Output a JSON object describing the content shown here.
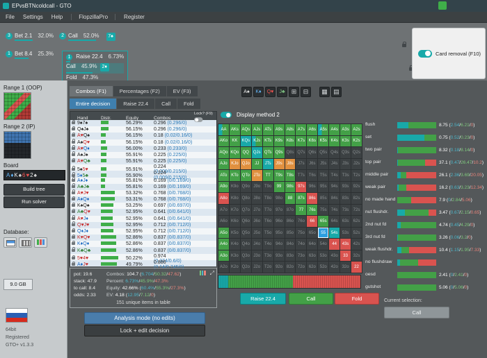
{
  "window": {
    "title": "EPvsBTNcoldcall - GTO"
  },
  "menu": {
    "items": [
      "File",
      "Settings",
      "Help"
    ],
    "brand": "FlopzillaPro",
    "register": "Register"
  },
  "tree": {
    "row1": {
      "badge_a": "3",
      "action_a": "Bet 2.1",
      "pct_a": "32.0%",
      "badge_b": "2",
      "action_b": "Call",
      "pct_b": "52.0%",
      "chip": "7♠"
    },
    "row2": {
      "badge": "1",
      "action": "Bet 8.4",
      "pct": "25.3%",
      "box": {
        "badge": "1",
        "raise": "Raise 22.4",
        "raise_pct": "6.73%",
        "call": "Call",
        "call_pct": "45.9%",
        "chip": "2♦",
        "fold": "Fold",
        "fold_pct": "47.3%"
      }
    }
  },
  "card_removal": {
    "label": "Card removal (F10)",
    "enabled": true
  },
  "sidebar": {
    "range1_label": "Range 1 (OOP)",
    "range2_label": "Range 2 (IP)",
    "board_label": "Board",
    "board_cards": [
      {
        "t": "A♦",
        "s": "d"
      },
      {
        "t": "K♠",
        "s": "s"
      },
      {
        "t": "6♥",
        "s": "h"
      },
      {
        "t": "2♠",
        "s": "s"
      }
    ],
    "build_tree": "Build tree",
    "run_solver": "Run solver",
    "database_label": "Database:",
    "storage": "9.0 GB",
    "version_lines": [
      "64bit",
      "Registered",
      "GTO+ v1.3.3"
    ]
  },
  "tabs_primary": {
    "items": [
      "Combos (F1)",
      "Percentages (F2)",
      "EV (F3)"
    ],
    "active": 0
  },
  "tabs_decision": {
    "items": [
      "Entire decision",
      "Raise 22.4",
      "Call",
      "Fold"
    ],
    "active": 0
  },
  "card_toolbar": {
    "cards": [
      {
        "label": "A♠",
        "color": "#e8e8e8"
      },
      {
        "label": "K♦",
        "color": "#64b5f6"
      },
      {
        "label": "Q♥",
        "color": "#ef5350"
      },
      {
        "label": "J♣",
        "color": "#81c784"
      }
    ],
    "grid_buttons": [
      "⊞",
      "⊟",
      "▦",
      "▤"
    ]
  },
  "display_method": {
    "label": "Display method 2",
    "enabled": true
  },
  "hands_table": {
    "columns": [
      "Hand",
      "Distr.",
      "Equity",
      "Combos"
    ],
    "lock_header": "Lock? (F9)",
    "rows": [
      {
        "h": "9♠7♠",
        "e": "56.29%",
        "c": "0.296",
        "p": "(0.296/0)",
        "d": 30
      },
      {
        "h": "Q♠J♠",
        "e": "56.15%",
        "c": "0.296",
        "p": "(0.296/0)",
        "d": 30
      },
      {
        "h": "A♥Q♠",
        "e": "56.15%",
        "c": "0.18",
        "p": "(0.02/0.16/0)",
        "d": 20
      },
      {
        "h": "A♠Q♥",
        "e": "56.15%",
        "c": "0.18",
        "p": "(0.02/0.16/0)",
        "d": 20
      },
      {
        "h": "A♥Q♦",
        "e": "56.00%",
        "c": "0.233",
        "p": "(0.233/0)",
        "d": 24
      },
      {
        "h": "A♠J♠",
        "e": "55.91%",
        "c": "0.225",
        "p": "(0.225/0)",
        "d": 23
      },
      {
        "h": "A♥Q♣",
        "e": "55.91%",
        "c": "0.225",
        "p": "(0.225/0)",
        "d": 23
      },
      {
        "h": "5♠5♥",
        "e": "55.91%",
        "c": "0.224",
        "p": "(0.009/0.215/0)",
        "d": 23
      },
      {
        "h": "5♦5♣",
        "e": "55.90%",
        "c": "0.224",
        "p": "(0.009/0.215/0)",
        "d": 23
      },
      {
        "h": "A♦J♦",
        "e": "55.81%",
        "c": "0.169",
        "p": "(0/0.169/0)",
        "d": 18
      },
      {
        "h": "A♣J♣",
        "e": "55.81%",
        "c": "0.169",
        "p": "(0/0.169/0)",
        "d": 18
      },
      {
        "h": "A♥J♥",
        "e": "53.32%",
        "c": "0.768",
        "p": "(0/0.768/0)",
        "d": 55
      },
      {
        "h": "A♦Q♦",
        "e": "53.31%",
        "c": "0.768",
        "p": "(0/0.768/0)",
        "d": 55
      },
      {
        "h": "K♠Q♠",
        "e": "53.25%",
        "c": "0.697",
        "p": "(0/0.697/0)",
        "d": 50
      },
      {
        "h": "A♣Q♥",
        "e": "52.95%",
        "c": "0.641",
        "p": "(0/0.641/0)",
        "d": 46
      },
      {
        "h": "A♥J♦",
        "e": "52.95%",
        "c": "0.641",
        "p": "(0/0.641/0)",
        "d": 46
      },
      {
        "h": "Q♥J♥",
        "e": "52.95%",
        "c": "0.712",
        "p": "(0/0.712/0)",
        "d": 51
      },
      {
        "h": "Q♦J♦",
        "e": "52.95%",
        "c": "0.712",
        "p": "(0/0.712/0)",
        "d": 51
      },
      {
        "h": "K♥Q♥",
        "e": "52.86%",
        "c": "0.837",
        "p": "(0/0.837/0)",
        "d": 60
      },
      {
        "h": "K♦Q♦",
        "e": "52.86%",
        "c": "0.837",
        "p": "(0/0.837/0)",
        "d": 60
      },
      {
        "h": "K♣Q♣",
        "e": "52.86%",
        "c": "0.837",
        "p": "(0/0.837/0)",
        "d": 60
      },
      {
        "h": "5♥4♥",
        "e": "50.22%",
        "c": "0.974",
        "p": "(0.374/0.6/0)",
        "d": 70
      },
      {
        "h": "A♦J♥",
        "e": "49.79%",
        "c": "0.886",
        "p": "(0.14/0.745/0)",
        "d": 63
      }
    ]
  },
  "summary": {
    "pot": "pot: 19.6",
    "stack": "stack: 47.9",
    "to_call": "to call: 8.4",
    "odds": "odds: 2.33",
    "combos": {
      "label": "Combos:",
      "total": "104.7",
      "parts": [
        "6.704",
        "50.32",
        "47.62"
      ]
    },
    "percent": {
      "label": "Percent:",
      "total": "",
      "parts": [
        "6.73%",
        "45.9%",
        "47.3%"
      ]
    },
    "equity": {
      "label": "Equity:",
      "total": "42.66%",
      "parts": [
        "60.4%",
        "55.3%",
        "27.3%"
      ]
    },
    "ev": {
      "label": "EV:",
      "total": "4.18",
      "parts": [
        "12.95",
        "7.12",
        "0"
      ]
    },
    "note": "151 unique items in table"
  },
  "mode_buttons": {
    "analysis": "Analysis mode (no edits)",
    "lock_edit": "Lock + edit decision"
  },
  "matrix": {
    "rows": [
      [
        "AA|tg",
        "AKs|g",
        "AQs|g",
        "AJs|g",
        "ATs|g",
        "A9s|g",
        "A8s|g",
        "A7s|g",
        "A6s|g",
        "A5s|tg",
        "A4s|g",
        "A3s|g",
        "A2s|g"
      ],
      [
        "AKo|g",
        "KK|g",
        "KQs|t",
        "KJs|tg",
        "KTs|g",
        "K9s|g",
        "K8s|g",
        "K7s|g",
        "K6s|g",
        "K5s|g",
        "K4s|g",
        "K3s|g",
        "K2s|g"
      ],
      [
        "AQo|g",
        "KQo|g",
        "QQ|g",
        "QJs|t",
        "QTs|g",
        "Q9s|g",
        "Q8s|d",
        "Q7s|d",
        "Q6s|d",
        "Q5s|d",
        "Q4s|d",
        "Q3s|d",
        "Q2s|d"
      ],
      [
        "AJo|g",
        "KJo|o",
        "QJo|o",
        "JJ|g",
        "JTs|t",
        "J9s|o",
        "J8s|o",
        "J7s|d",
        "J6s|d",
        "J5s|d",
        "J4s|d",
        "J3s|d",
        "J2s|d"
      ],
      [
        "ATo|g",
        "KTo|g",
        "QTo|g",
        "JTo|o",
        "TT|g",
        "T9s|g",
        "T8s|g",
        "T7s|d",
        "T6s|d",
        "T5s|d",
        "T4s|d",
        "T3s|d",
        "T2s|d"
      ],
      [
        "A9o|g",
        "K9o|d",
        "Q9o|d",
        "J9o|d",
        "T9o|d",
        "99|g",
        "98s|g",
        "97s|r",
        "96s|d",
        "95s|d",
        "94s|d",
        "93s|d",
        "92s|d"
      ],
      [
        "A8o|r",
        "K8o|d",
        "Q8o|d",
        "J8o|d",
        "T8o|d",
        "98o|d",
        "88|g",
        "87s|g",
        "86s|r",
        "85s|d",
        "84s|d",
        "83s|d",
        "82s|d"
      ],
      [
        "A7o|d",
        "K7o|d",
        "Q7o|d",
        "J7o|d",
        "T7o|d",
        "97o|d",
        "87o|d",
        "77|g",
        "76s|g",
        "75s|d",
        "74s|d",
        "73s|d",
        "72s|d"
      ],
      [
        "A6o|d",
        "K6o|d",
        "Q6o|d",
        "J6o|d",
        "T6o|d",
        "96o|d",
        "86o|d",
        "76o|d",
        "66|r",
        "65s|g",
        "64s|d",
        "63s|d",
        "62s|d"
      ],
      [
        "A5o|g",
        "K5o|d",
        "Q5o|d",
        "J5o|d",
        "T5o|d",
        "95o|d",
        "85o|d",
        "75o|d",
        "65o|d",
        "55|b",
        "54s|t",
        "53s|d",
        "52s|d"
      ],
      [
        "A4o|g",
        "K4o|d",
        "Q4o|d",
        "J4o|d",
        "T4o|d",
        "94o|d",
        "84o|d",
        "74o|d",
        "64o|d",
        "54o|d",
        "44|r",
        "43s|r",
        "42s|d"
      ],
      [
        "A3o|g",
        "K3o|d",
        "Q3o|d",
        "J3o|d",
        "T3o|d",
        "93o|d",
        "83o|d",
        "73o|d",
        "63o|d",
        "53o|d",
        "43o|d",
        "33|r",
        "32s|d"
      ],
      [
        "A2o|d",
        "K2o|d",
        "Q2o|d",
        "J2o|d",
        "T2o|d",
        "92o|d",
        "82o|d",
        "72o|d",
        "62o|d",
        "52o|d",
        "42o|d",
        "32o|d",
        "22|r"
      ]
    ]
  },
  "strip": {
    "segments": [
      {
        "color": "t",
        "pct": 6.7
      },
      {
        "color": "g",
        "pct": 45.9
      },
      {
        "color": "r",
        "pct": 47.4
      }
    ]
  },
  "action_buttons": {
    "raise": "Raise 22.4",
    "call": "Call",
    "fold": "Fold",
    "current_label": "Current selection:",
    "current": "Call"
  },
  "categories": {
    "rows": [
      {
        "label": "flush",
        "value": "8.75",
        "parts": [
          "2.54",
          "6.21",
          "0"
        ],
        "bar": [
          29,
          71,
          0
        ]
      },
      {
        "label": "set",
        "value": "0.75",
        "parts": [
          "0.52",
          "0.23",
          "0"
        ],
        "bar": [
          69,
          31,
          0
        ]
      },
      {
        "label": "two pair",
        "value": "8.32",
        "parts": [
          "0.18",
          "8.14",
          "0"
        ],
        "bar": [
          2,
          98,
          0
        ]
      },
      {
        "label": "top pair",
        "value": "37.1",
        "parts": [
          "0.47",
          "26.47",
          "10.2"
        ],
        "bar": [
          1,
          71,
          28
        ]
      },
      {
        "label": "middle pair",
        "value": "26.1",
        "parts": [
          "2.36",
          "3.69",
          "20.05"
        ],
        "bar": [
          9,
          14,
          77
        ]
      },
      {
        "label": "weak pair",
        "value": "16.2",
        "parts": [
          "0.63",
          "3.23",
          "12.34"
        ],
        "bar": [
          4,
          20,
          76
        ]
      },
      {
        "label": "no made hand",
        "value": "7.9",
        "parts": [
          "0",
          "2.84",
          "5.06"
        ],
        "bar": [
          0,
          36,
          64
        ]
      },
      {
        "label": "nut flushdr.",
        "value": "3.47",
        "parts": [
          "0.67",
          "2.15",
          "0.65"
        ],
        "bar": [
          19,
          62,
          19
        ]
      },
      {
        "label": "2nd nut fd",
        "value": "4.74",
        "parts": [
          "0.45",
          "4.29",
          "0"
        ],
        "bar": [
          9,
          91,
          0
        ]
      },
      {
        "label": "3rd nut fd",
        "value": "3.26",
        "parts": [
          "0.06",
          "3.2",
          "0"
        ],
        "bar": [
          2,
          98,
          0
        ]
      },
      {
        "label": "weak flushdr.",
        "value": "10.4",
        "parts": [
          "1.15",
          "1.95",
          "7.33"
        ],
        "bar": [
          11,
          19,
          70
        ]
      },
      {
        "label": "no flushdraw",
        "value": "",
        "parts": [],
        "bar": [
          7,
          46,
          47
        ]
      },
      {
        "label": "oesd",
        "value": "2.41",
        "parts": [
          "0",
          "2.41",
          "0"
        ],
        "bar": [
          0,
          100,
          0
        ]
      },
      {
        "label": "gutshot",
        "value": "5.06",
        "parts": [
          "0",
          "5.06",
          "0"
        ],
        "bar": [
          0,
          100,
          0
        ]
      }
    ]
  },
  "colors": {
    "raise": "#18a9a9",
    "call": "#43a047",
    "fold": "#d9534f",
    "selected": "#e0903f",
    "highlight": "#2d9fe0"
  }
}
